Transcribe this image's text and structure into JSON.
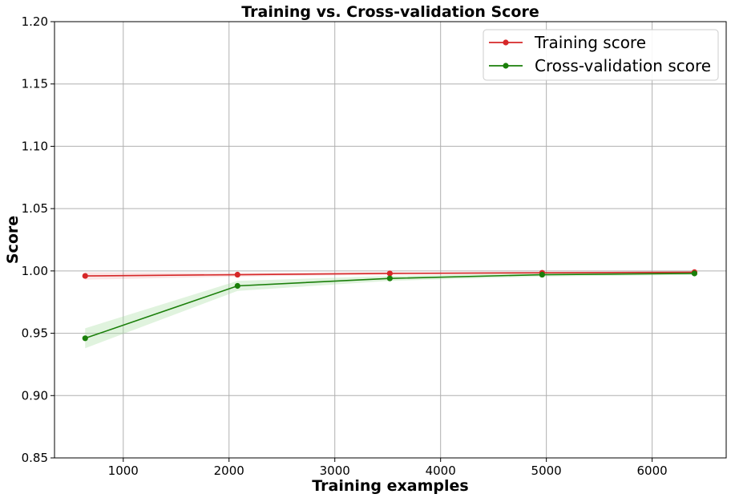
{
  "chart_data": {
    "type": "line",
    "title": "Training vs. Cross-validation Score",
    "xlabel": "Training examples",
    "ylabel": "Score",
    "xlim": [
      350,
      6700
    ],
    "ylim": [
      0.85,
      1.2
    ],
    "xticks": [
      1000,
      2000,
      3000,
      4000,
      5000,
      6000
    ],
    "xtick_labels": [
      "1000",
      "2000",
      "3000",
      "4000",
      "5000",
      "6000"
    ],
    "yticks": [
      0.85,
      0.9,
      0.95,
      1.0,
      1.05,
      1.1,
      1.15,
      1.2
    ],
    "ytick_labels": [
      "0.85",
      "0.90",
      "0.95",
      "1.00",
      "1.05",
      "1.10",
      "1.15",
      "1.20"
    ],
    "grid": true,
    "legend_position": "top-right",
    "x": [
      640,
      2080,
      3520,
      4960,
      6400
    ],
    "series": [
      {
        "name": "Training score",
        "color": "#d62728",
        "values": [
          0.996,
          0.997,
          0.998,
          0.9985,
          0.999
        ],
        "band_lower": [
          0.993,
          0.9955,
          0.997,
          0.9978,
          0.9983
        ],
        "band_upper": [
          0.999,
          0.9985,
          0.999,
          0.9992,
          0.9997
        ]
      },
      {
        "name": "Cross-validation score",
        "color": "#1a7f0a",
        "band_color": "#a5dca0",
        "values": [
          0.946,
          0.988,
          0.994,
          0.997,
          0.998
        ],
        "band_lower": [
          0.938,
          0.984,
          0.992,
          0.9955,
          0.9968
        ],
        "band_upper": [
          0.954,
          0.992,
          0.996,
          0.9985,
          0.9992
        ]
      }
    ]
  }
}
